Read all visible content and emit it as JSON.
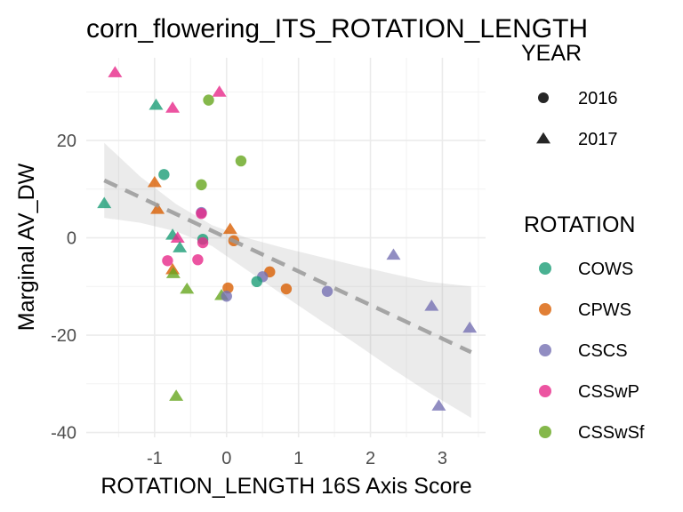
{
  "chart_data": {
    "type": "scatter",
    "title": "corn_flowering_ITS_ROTATION_LENGTH",
    "xlabel": "ROTATION_LENGTH 16S Axis Score",
    "ylabel": "Marginal AV_DW",
    "xlim": [
      -1.95,
      3.6
    ],
    "ylim": [
      -41,
      37
    ],
    "x_ticks": [
      -1,
      0,
      1,
      2,
      3
    ],
    "x_tick_labels": [
      "-1",
      "0",
      "1",
      "2",
      "3"
    ],
    "y_ticks": [
      -40,
      -20,
      0,
      20
    ],
    "y_tick_labels": [
      "-40",
      "-20",
      "0",
      "20"
    ],
    "grid": true,
    "legend_position": "right",
    "legend": {
      "year": {
        "title": "YEAR",
        "entries": [
          {
            "label": "2016",
            "shape": "circle"
          },
          {
            "label": "2017",
            "shape": "triangle"
          }
        ]
      },
      "rotation": {
        "title": "ROTATION",
        "entries": [
          {
            "label": "COWS",
            "color": "#1b9e77"
          },
          {
            "label": "CPWS",
            "color": "#d95f02"
          },
          {
            "label": "CSCS",
            "color": "#7570b3"
          },
          {
            "label": "CSSwP",
            "color": "#e7298a"
          },
          {
            "label": "CSSwSf",
            "color": "#66a61e"
          }
        ]
      }
    },
    "trend_line": {
      "x": [
        -1.7,
        3.4
      ],
      "y": [
        11.8,
        -23.5
      ],
      "style": "dashed",
      "color": "#999999"
    },
    "confidence_band": {
      "x": [
        -1.7,
        -1.2,
        -0.7,
        -0.2,
        0.3,
        0.8,
        1.3,
        1.8,
        2.3,
        2.8,
        3.4
      ],
      "upper": [
        19.5,
        12.6,
        6.9,
        2.6,
        -0.1,
        -2.1,
        -3.9,
        -5.7,
        -7.4,
        -9.0,
        -10.0
      ],
      "lower": [
        4.1,
        3.1,
        1.3,
        -1.7,
        -6.8,
        -11.9,
        -16.9,
        -21.8,
        -26.9,
        -31.7,
        -37.0
      ]
    },
    "points": [
      {
        "x": -1.55,
        "y": 34,
        "rotation": "CSSwP",
        "year": "2017"
      },
      {
        "x": -0.1,
        "y": 30,
        "rotation": "CSSwP",
        "year": "2017"
      },
      {
        "x": -0.25,
        "y": 28.3,
        "rotation": "CSSwSf",
        "year": "2016"
      },
      {
        "x": -0.98,
        "y": 27.3,
        "rotation": "COWS",
        "year": "2017"
      },
      {
        "x": -0.75,
        "y": 26.7,
        "rotation": "CSSwP",
        "year": "2017"
      },
      {
        "x": 0.2,
        "y": 15.8,
        "rotation": "CSSwSf",
        "year": "2016"
      },
      {
        "x": -0.87,
        "y": 13,
        "rotation": "COWS",
        "year": "2016"
      },
      {
        "x": -1.0,
        "y": 11.4,
        "rotation": "CPWS",
        "year": "2017"
      },
      {
        "x": -0.35,
        "y": 10.9,
        "rotation": "CSSwSf",
        "year": "2016"
      },
      {
        "x": -1.7,
        "y": 7.1,
        "rotation": "COWS",
        "year": "2017"
      },
      {
        "x": -0.96,
        "y": 5.9,
        "rotation": "CPWS",
        "year": "2017"
      },
      {
        "x": -0.35,
        "y": 5.2,
        "rotation": "CSCS",
        "year": "2016"
      },
      {
        "x": -0.35,
        "y": 5,
        "rotation": "CSSwP",
        "year": "2016"
      },
      {
        "x": 0.05,
        "y": 1.8,
        "rotation": "CPWS",
        "year": "2017"
      },
      {
        "x": -0.75,
        "y": 0.6,
        "rotation": "COWS",
        "year": "2017"
      },
      {
        "x": -0.68,
        "y": 0,
        "rotation": "CSSwP",
        "year": "2017"
      },
      {
        "x": -0.33,
        "y": -0.3,
        "rotation": "COWS",
        "year": "2016"
      },
      {
        "x": 0.1,
        "y": -0.6,
        "rotation": "CPWS",
        "year": "2016"
      },
      {
        "x": -0.33,
        "y": -1,
        "rotation": "CSSwP",
        "year": "2016"
      },
      {
        "x": -0.65,
        "y": -2,
        "rotation": "COWS",
        "year": "2017"
      },
      {
        "x": 2.32,
        "y": -3.5,
        "rotation": "CSCS",
        "year": "2017"
      },
      {
        "x": -0.4,
        "y": -4.5,
        "rotation": "CSSwP",
        "year": "2016"
      },
      {
        "x": -0.82,
        "y": -4.7,
        "rotation": "CSSwP",
        "year": "2016"
      },
      {
        "x": -0.75,
        "y": -6.5,
        "rotation": "CPWS",
        "year": "2017"
      },
      {
        "x": -0.74,
        "y": -7.3,
        "rotation": "CSSwSf",
        "year": "2017"
      },
      {
        "x": 0.6,
        "y": -7,
        "rotation": "CPWS",
        "year": "2016"
      },
      {
        "x": 0.5,
        "y": -8,
        "rotation": "CSCS",
        "year": "2016"
      },
      {
        "x": 0.42,
        "y": -9,
        "rotation": "COWS",
        "year": "2016"
      },
      {
        "x": -0.55,
        "y": -10.5,
        "rotation": "CSSwSf",
        "year": "2017"
      },
      {
        "x": 0.02,
        "y": -10.3,
        "rotation": "CPWS",
        "year": "2016"
      },
      {
        "x": 0.83,
        "y": -10.5,
        "rotation": "CPWS",
        "year": "2016"
      },
      {
        "x": 1.4,
        "y": -11,
        "rotation": "CSCS",
        "year": "2016"
      },
      {
        "x": -0.07,
        "y": -11.8,
        "rotation": "CSSwSf",
        "year": "2017"
      },
      {
        "x": 0.0,
        "y": -12,
        "rotation": "CSCS",
        "year": "2016"
      },
      {
        "x": 2.85,
        "y": -14,
        "rotation": "CSCS",
        "year": "2017"
      },
      {
        "x": 3.38,
        "y": -18.5,
        "rotation": "CSCS",
        "year": "2017"
      },
      {
        "x": -0.7,
        "y": -32.5,
        "rotation": "CSSwSf",
        "year": "2017"
      },
      {
        "x": 2.95,
        "y": -34.5,
        "rotation": "CSCS",
        "year": "2017"
      }
    ]
  }
}
